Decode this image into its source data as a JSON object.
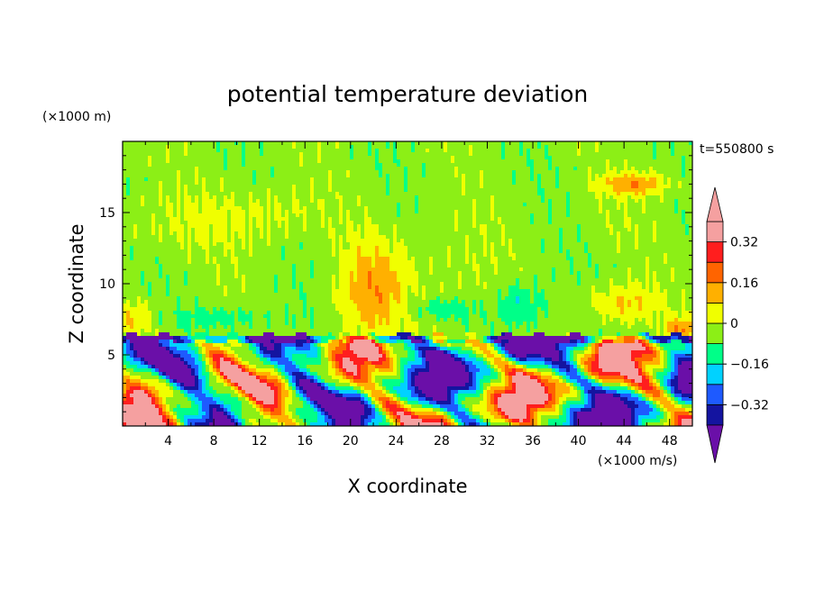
{
  "chart_data": {
    "type": "heatmap",
    "title": "potential temperature deviation",
    "xlabel": "X coordinate",
    "ylabel": "Z coordinate",
    "x_unit": "(×1000 m/s)",
    "y_unit": "(×1000 m)",
    "time_label": "t=550800 s",
    "xlim": [
      0,
      50
    ],
    "ylim": [
      0,
      20
    ],
    "x_ticks": [
      4,
      8,
      12,
      16,
      20,
      24,
      28,
      32,
      36,
      40,
      44,
      48
    ],
    "y_ticks": [
      5,
      10,
      15
    ],
    "colorbar": {
      "levels": [
        -0.4,
        -0.32,
        -0.24,
        -0.16,
        -0.08,
        0,
        0.08,
        0.16,
        0.24,
        0.32,
        0.4
      ],
      "tick_values": [
        0.32,
        0.16,
        0,
        -0.16,
        -0.32
      ],
      "tick_labels": [
        "0.32",
        "0.16",
        "0",
        "−0.16",
        "−0.32"
      ],
      "colors": [
        "#6a0fa8",
        "#1414a0",
        "#1e5aff",
        "#00d2ff",
        "#00ff88",
        "#8cef16",
        "#f0ff00",
        "#ffb000",
        "#ff6400",
        "#ff1e1e",
        "#f5a0a0"
      ],
      "extend": "both"
    }
  }
}
